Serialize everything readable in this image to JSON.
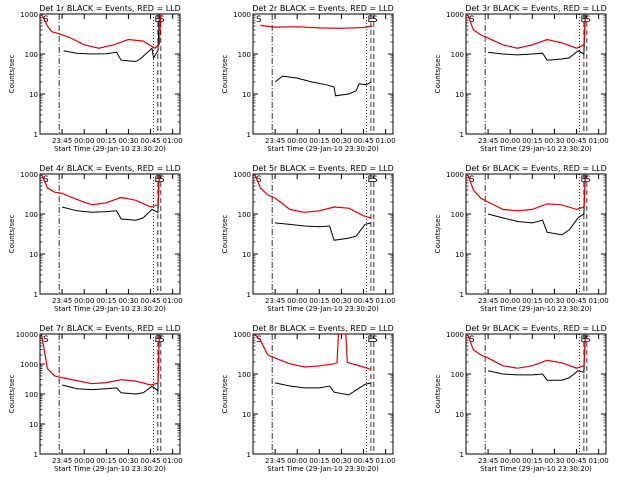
{
  "chart_data": [
    {
      "type": "line",
      "title": "Det 1r BLACK = Events, RED = LLD",
      "xlabel": "Start Time (29-Jan-10 23:30:20)",
      "ylabel": "Counts/sec",
      "y_scale": "log",
      "ylim": [
        1,
        1000
      ],
      "y_ticks": [
        "1",
        "10",
        "100",
        "1000"
      ],
      "x_ticks": [
        "23:45",
        "00:00",
        "00:15",
        "00:30",
        "00:45",
        "01:00"
      ],
      "markers": [
        "S",
        "E",
        "S"
      ],
      "series": [
        {
          "color": "#000000",
          "x": [
            "23:43",
            "23:46",
            "23:55",
            "00:05",
            "00:15",
            "00:22",
            "00:25",
            "00:35",
            "00:38",
            "00:46",
            "00:47",
            "00:50",
            "00:51"
          ],
          "y": [
            null,
            120,
            105,
            100,
            102,
            110,
            70,
            65,
            75,
            140,
            80,
            120,
            1000
          ]
        },
        {
          "color": "#e00000",
          "x": [
            "23:31",
            "23:35",
            "23:38",
            "23:43",
            "23:50",
            "00:00",
            "00:10",
            "00:20",
            "00:30",
            "00:40",
            "00:48",
            "00:51",
            "00:52"
          ],
          "y": [
            1000,
            500,
            360,
            320,
            260,
            170,
            140,
            170,
            230,
            210,
            140,
            180,
            1000
          ]
        }
      ]
    },
    {
      "type": "line",
      "title": "Det 2r BLACK = Events, RED = LLD",
      "xlabel": "Start Time (29-Jan-10 23:30:20)",
      "ylabel": "Counts/sec",
      "y_scale": "log",
      "ylim": [
        1,
        1000
      ],
      "y_ticks": [
        "1",
        "10",
        "100",
        "1000"
      ],
      "x_ticks": [
        "23:45",
        "00:00",
        "00:15",
        "00:30",
        "00:45",
        "01:00"
      ],
      "markers": [
        "S",
        "E",
        "S"
      ],
      "series": [
        {
          "color": "#000000",
          "x": [
            "23:45",
            "23:50",
            "00:00",
            "00:10",
            "00:20",
            "00:25",
            "00:26",
            "00:35",
            "00:40",
            "00:42",
            "00:47",
            "00:50"
          ],
          "y": [
            20,
            28,
            25,
            20,
            17,
            15,
            9,
            10,
            12,
            18,
            17,
            20
          ]
        },
        {
          "color": "#e00000",
          "x": [
            "23:35",
            "23:45",
            "00:00",
            "00:15",
            "00:30",
            "00:45",
            "00:51"
          ],
          "y": [
            520,
            470,
            480,
            450,
            440,
            460,
            500
          ]
        }
      ]
    },
    {
      "type": "line",
      "title": "Det 3r BLACK = Events, RED = LLD",
      "xlabel": "Start Time (29-Jan-10 23:30:20)",
      "ylabel": "Counts/sec",
      "y_scale": "log",
      "ylim": [
        1,
        1000
      ],
      "y_ticks": [
        "1",
        "10",
        "100",
        "1000"
      ],
      "x_ticks": [
        "23:45",
        "00:00",
        "00:15",
        "00:30",
        "00:45",
        "01:00"
      ],
      "markers": [
        "S",
        "E",
        "S"
      ],
      "series": [
        {
          "color": "#000000",
          "x": [
            "23:45",
            "23:55",
            "00:05",
            "00:15",
            "00:22",
            "00:25",
            "00:35",
            "00:40",
            "00:46",
            "00:50",
            "00:51"
          ],
          "y": [
            110,
            100,
            95,
            100,
            105,
            70,
            75,
            80,
            120,
            100,
            1000
          ]
        },
        {
          "color": "#e00000",
          "x": [
            "23:31",
            "23:35",
            "23:40",
            "23:45",
            "23:55",
            "00:05",
            "00:15",
            "00:25",
            "00:35",
            "00:45",
            "00:50",
            "00:51"
          ],
          "y": [
            1000,
            400,
            300,
            250,
            170,
            140,
            170,
            230,
            190,
            140,
            170,
            1000
          ]
        }
      ]
    },
    {
      "type": "line",
      "title": "Det 4r BLACK = Events, RED = LLD",
      "xlabel": "Start Time (29-Jan-10 23:30:20)",
      "ylabel": "Counts/sec",
      "y_scale": "log",
      "ylim": [
        1,
        1000
      ],
      "y_ticks": [
        "1",
        "10",
        "100",
        "1000"
      ],
      "x_ticks": [
        "23:45",
        "00:00",
        "00:15",
        "00:30",
        "00:45",
        "01:00"
      ],
      "markers": [
        "S",
        "E",
        "S"
      ],
      "series": [
        {
          "color": "#000000",
          "x": [
            "23:45",
            "23:55",
            "00:05",
            "00:15",
            "00:22",
            "00:25",
            "00:35",
            "00:40",
            "00:46",
            "00:50",
            "00:51"
          ],
          "y": [
            150,
            120,
            110,
            115,
            120,
            75,
            70,
            80,
            130,
            110,
            1000
          ]
        },
        {
          "color": "#e00000",
          "x": [
            "23:31",
            "23:35",
            "23:40",
            "23:45",
            "23:55",
            "00:05",
            "00:15",
            "00:25",
            "00:35",
            "00:45",
            "00:50",
            "00:51"
          ],
          "y": [
            1000,
            450,
            350,
            330,
            230,
            170,
            190,
            260,
            220,
            150,
            170,
            1000
          ]
        }
      ]
    },
    {
      "type": "line",
      "title": "Det 5r BLACK = Events, RED = LLD",
      "xlabel": "Start Time (29-Jan-10 23:30:20)",
      "ylabel": "Counts/sec",
      "y_scale": "log",
      "ylim": [
        1,
        1000
      ],
      "y_ticks": [
        "1",
        "10",
        "100",
        "1000"
      ],
      "x_ticks": [
        "23:45",
        "00:00",
        "00:15",
        "00:30",
        "00:45",
        "01:00"
      ],
      "markers": [
        "S",
        "E",
        "S"
      ],
      "series": [
        {
          "color": "#000000",
          "x": [
            "23:45",
            "23:55",
            "00:05",
            "00:15",
            "00:22",
            "00:25",
            "00:35",
            "00:40",
            "00:46",
            "00:50"
          ],
          "y": [
            60,
            55,
            50,
            48,
            50,
            22,
            25,
            28,
            55,
            60
          ]
        },
        {
          "color": "#e00000",
          "x": [
            "23:31",
            "23:35",
            "23:40",
            "23:45",
            "23:55",
            "00:05",
            "00:15",
            "00:25",
            "00:35",
            "00:45",
            "00:50"
          ],
          "y": [
            1000,
            450,
            300,
            250,
            130,
            110,
            120,
            150,
            140,
            90,
            80
          ]
        }
      ]
    },
    {
      "type": "line",
      "title": "Det 6r BLACK = Events, RED = LLD",
      "xlabel": "Start Time (29-Jan-10 23:30:20)",
      "ylabel": "Counts/sec",
      "y_scale": "log",
      "ylim": [
        1,
        1000
      ],
      "y_ticks": [
        "1",
        "10",
        "100",
        "1000"
      ],
      "x_ticks": [
        "23:45",
        "00:00",
        "00:15",
        "00:30",
        "00:45",
        "01:00"
      ],
      "markers": [
        "S",
        "E",
        "S"
      ],
      "series": [
        {
          "color": "#000000",
          "x": [
            "23:45",
            "23:55",
            "00:05",
            "00:15",
            "00:22",
            "00:25",
            "00:35",
            "00:40",
            "00:46",
            "00:50",
            "00:51"
          ],
          "y": [
            100,
            80,
            65,
            60,
            70,
            35,
            30,
            40,
            80,
            100,
            1000
          ]
        },
        {
          "color": "#e00000",
          "x": [
            "23:31",
            "23:35",
            "23:40",
            "23:45",
            "23:55",
            "00:05",
            "00:15",
            "00:25",
            "00:35",
            "00:45",
            "00:50",
            "00:51"
          ],
          "y": [
            1000,
            400,
            250,
            200,
            130,
            120,
            130,
            180,
            170,
            130,
            150,
            1000
          ]
        }
      ]
    },
    {
      "type": "line",
      "title": "Det 7r BLACK = Events, RED = LLD",
      "xlabel": "Start Time (29-Jan-10 23:30:20)",
      "ylabel": "Counts/sec",
      "y_scale": "log",
      "ylim": [
        1,
        10000
      ],
      "y_ticks": [
        "1",
        "10",
        "100",
        "1000",
        "10000"
      ],
      "x_ticks": [
        "23:45",
        "00:00",
        "00:15",
        "00:30",
        "00:45",
        "01:00"
      ],
      "markers": [
        "S",
        "E",
        "S"
      ],
      "series": [
        {
          "color": "#000000",
          "x": [
            "23:45",
            "23:55",
            "00:05",
            "00:15",
            "00:22",
            "00:25",
            "00:35",
            "00:40",
            "00:46",
            "00:50",
            "00:51"
          ],
          "y": [
            200,
            150,
            140,
            150,
            160,
            110,
            100,
            110,
            180,
            130,
            10000
          ]
        },
        {
          "color": "#e00000",
          "x": [
            "23:31",
            "23:35",
            "23:40",
            "23:45",
            "23:55",
            "00:05",
            "00:15",
            "00:25",
            "00:35",
            "00:45",
            "00:50",
            "00:51"
          ],
          "y": [
            10000,
            700,
            400,
            350,
            280,
            220,
            240,
            300,
            270,
            200,
            230,
            10000
          ]
        }
      ]
    },
    {
      "type": "line",
      "title": "Det 8r BLACK = Events, RED = LLD",
      "xlabel": "Start Time (29-Jan-10 23:30:20)",
      "ylabel": "Counts/sec",
      "y_scale": "log",
      "ylim": [
        1,
        1000
      ],
      "y_ticks": [
        "1",
        "10",
        "100",
        "1000"
      ],
      "x_ticks": [
        "23:45",
        "00:00",
        "00:15",
        "00:30",
        "00:45",
        "01:00"
      ],
      "markers": [
        "S",
        "E",
        "S"
      ],
      "series": [
        {
          "color": "#000000",
          "x": [
            "23:45",
            "23:55",
            "00:05",
            "00:15",
            "00:22",
            "00:25",
            "00:35",
            "00:40",
            "00:46",
            "00:50"
          ],
          "y": [
            60,
            50,
            45,
            45,
            50,
            35,
            30,
            40,
            55,
            60
          ]
        },
        {
          "color": "#e00000",
          "x": [
            "23:31",
            "23:35",
            "23:40",
            "23:45",
            "23:55",
            "00:05",
            "00:15",
            "00:25",
            "00:27",
            "00:28",
            "00:33",
            "00:34",
            "00:35",
            "00:45",
            "00:50"
          ],
          "y": [
            1000,
            700,
            300,
            250,
            180,
            150,
            160,
            180,
            190,
            1000,
            1000,
            200,
            190,
            150,
            130
          ]
        }
      ]
    },
    {
      "type": "line",
      "title": "Det 9r BLACK = Events, RED = LLD",
      "xlabel": "Start Time (29-Jan-10 23:30:20)",
      "ylabel": "Counts/sec",
      "y_scale": "log",
      "ylim": [
        1,
        1000
      ],
      "y_ticks": [
        "1",
        "10",
        "100",
        "1000"
      ],
      "x_ticks": [
        "23:45",
        "00:00",
        "00:15",
        "00:30",
        "00:45",
        "01:00"
      ],
      "markers": [
        "S",
        "E",
        "S"
      ],
      "series": [
        {
          "color": "#000000",
          "x": [
            "23:45",
            "23:55",
            "00:05",
            "00:15",
            "00:22",
            "00:25",
            "00:35",
            "00:40",
            "00:46",
            "00:50",
            "00:51"
          ],
          "y": [
            120,
            100,
            95,
            95,
            100,
            70,
            70,
            80,
            120,
            110,
            1000
          ]
        },
        {
          "color": "#e00000",
          "x": [
            "23:31",
            "23:35",
            "23:40",
            "23:45",
            "23:55",
            "00:05",
            "00:15",
            "00:25",
            "00:35",
            "00:45",
            "00:50",
            "00:51"
          ],
          "y": [
            1000,
            400,
            300,
            250,
            160,
            140,
            160,
            220,
            190,
            140,
            160,
            1000
          ]
        }
      ]
    }
  ]
}
